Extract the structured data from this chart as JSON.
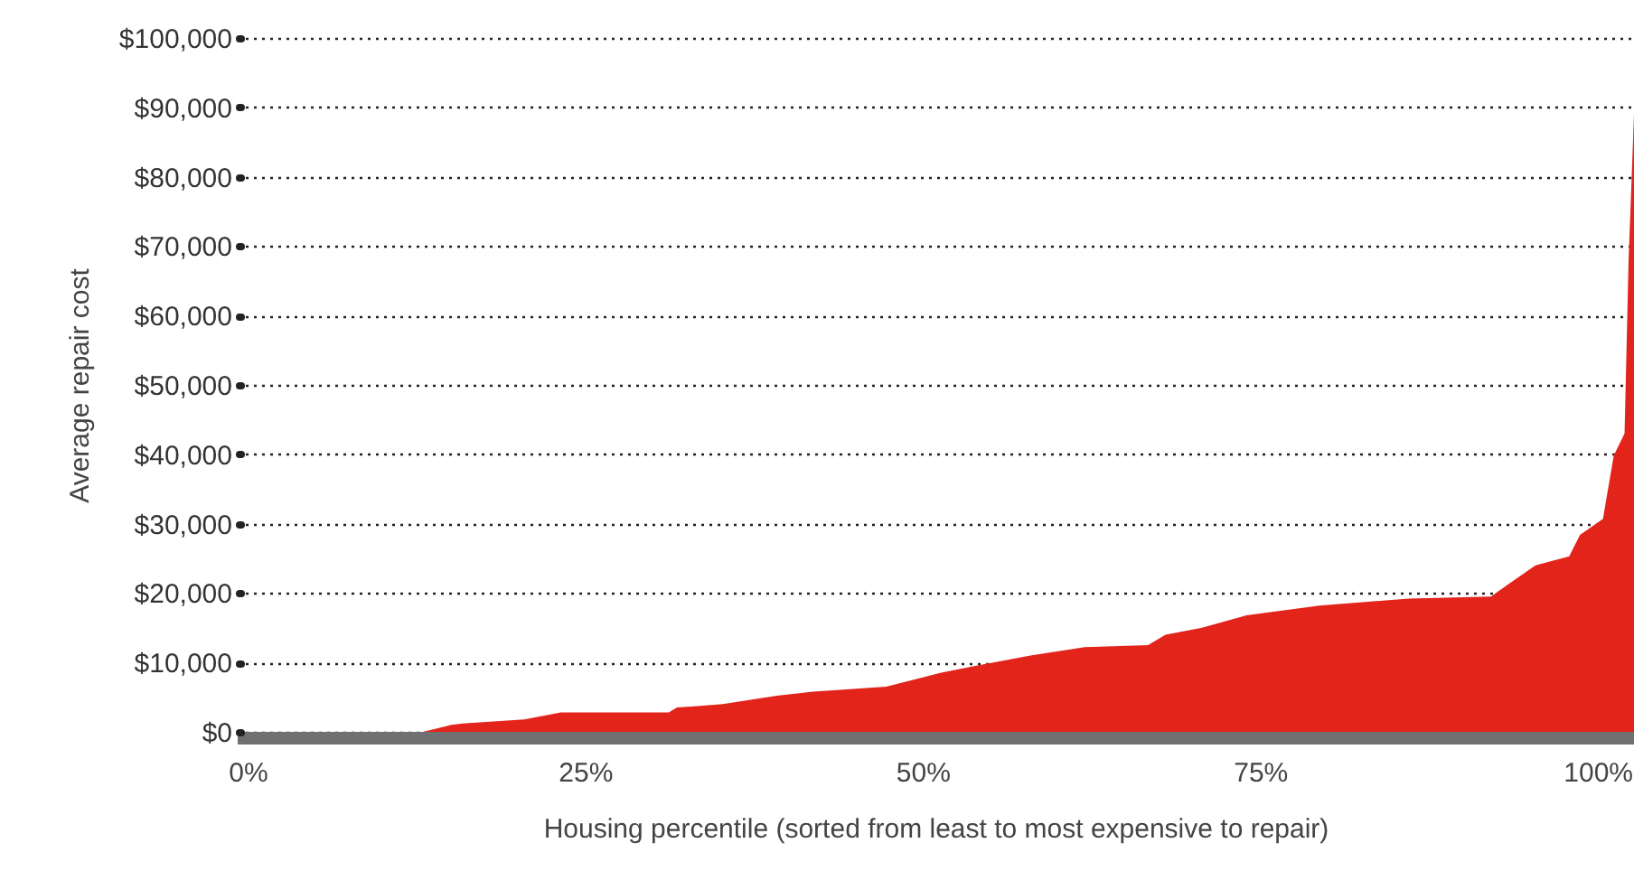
{
  "chart_data": {
    "type": "area",
    "xlabel": "Housing percentile (sorted from least to most expensive to repair)",
    "ylabel": "Average repair cost",
    "x": [
      0,
      13,
      15.1,
      15.9,
      20.5,
      23.2,
      31.2,
      31.8,
      35.2,
      39.2,
      41.9,
      47.3,
      51.3,
      53.9,
      58,
      62,
      66.7,
      68,
      70.7,
      74,
      79.4,
      86,
      92.1,
      93.4,
      95.4,
      97.9,
      98.7,
      100.4,
      101.2,
      102,
      102.3,
      102.7
    ],
    "values": [
      0,
      0,
      1000,
      1200,
      1800,
      2800,
      2800,
      3500,
      4000,
      5200,
      5800,
      6500,
      8500,
      9500,
      11000,
      12200,
      12500,
      14000,
      15000,
      16800,
      18200,
      19200,
      19500,
      21300,
      24000,
      25300,
      28400,
      30700,
      39800,
      43000,
      68000,
      89000
    ],
    "color": "#e3241b",
    "xlim": [
      -0.8,
      102.7
    ],
    "ylim": [
      0,
      100000
    ],
    "xticks": [
      {
        "value": 0,
        "label": "0%"
      },
      {
        "value": 25,
        "label": "25%"
      },
      {
        "value": 50,
        "label": "50%"
      },
      {
        "value": 75,
        "label": "75%"
      },
      {
        "value": 100,
        "label": "100%"
      }
    ],
    "yticks": [
      {
        "value": 0,
        "label": "$0"
      },
      {
        "value": 10000,
        "label": "$10,000"
      },
      {
        "value": 20000,
        "label": "$20,000"
      },
      {
        "value": 30000,
        "label": "$30,000"
      },
      {
        "value": 40000,
        "label": "$40,000"
      },
      {
        "value": 50000,
        "label": "$50,000"
      },
      {
        "value": 60000,
        "label": "$60,000"
      },
      {
        "value": 70000,
        "label": "$70,000"
      },
      {
        "value": 80000,
        "label": "$80,000"
      },
      {
        "value": 90000,
        "label": "$90,000"
      },
      {
        "value": 100000,
        "label": "$100,000"
      }
    ],
    "grid": "y"
  }
}
